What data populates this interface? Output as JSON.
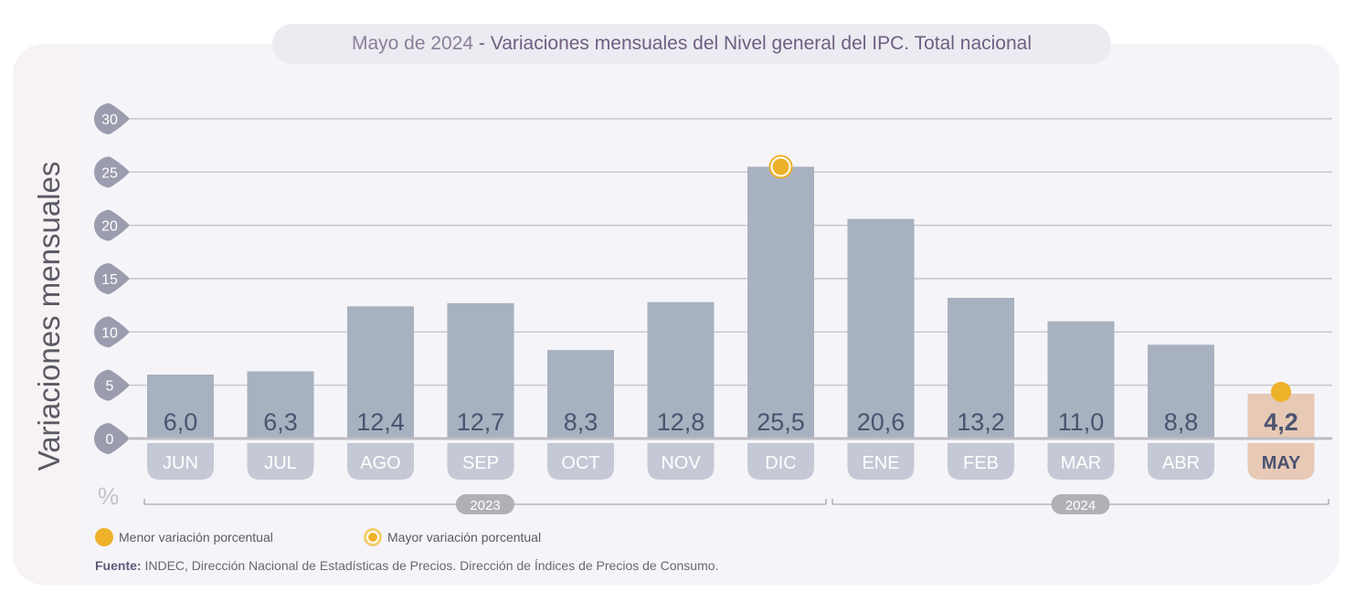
{
  "header": {
    "title_prefix": "Mayo de 2024",
    "title_separator": " - ",
    "title_main": "Variaciones mensuales del Nivel general del IPC. Total nacional"
  },
  "chart_data": {
    "type": "bar",
    "title": "Mayo de 2024 - Variaciones mensuales del Nivel general del IPC. Total nacional",
    "ylabel": "Variaciones mensuales",
    "yunit": "%",
    "ylim": [
      0,
      30
    ],
    "yticks": [
      0,
      5,
      10,
      15,
      20,
      25,
      30
    ],
    "grid": true,
    "categories": [
      "JUN",
      "JUL",
      "AGO",
      "SEP",
      "OCT",
      "NOV",
      "DIC",
      "ENE",
      "FEB",
      "MAR",
      "ABR",
      "MAY"
    ],
    "values": [
      6.0,
      6.3,
      12.4,
      12.7,
      8.3,
      12.8,
      25.5,
      20.6,
      13.2,
      11.0,
      8.8,
      4.2
    ],
    "value_labels": [
      "6,0",
      "6,3",
      "12,4",
      "12,7",
      "8,3",
      "12,8",
      "25,5",
      "20,6",
      "13,2",
      "11,0",
      "8,8",
      "4,2"
    ],
    "highlight_index": 11,
    "year_groups": [
      {
        "label": "2023",
        "from": 0,
        "to": 6
      },
      {
        "label": "2024",
        "from": 7,
        "to": 11
      }
    ],
    "markers": [
      {
        "index": 11,
        "type": "menor"
      },
      {
        "index": 6,
        "type": "mayor"
      }
    ],
    "legend": [
      {
        "type": "menor",
        "label": "Menor variación porcentual"
      },
      {
        "type": "mayor",
        "label": "Mayor variación porcentual"
      }
    ],
    "legend_position": "bottom-left"
  },
  "colors": {
    "bar": "#a8b1bf",
    "bar_highlight": "#e7c9b6",
    "month_tab": "#c4c9d5",
    "value_text": "#4c5370",
    "marker": "#eeb12a",
    "tick_bubble": "#9c9caf",
    "grid": "#bdbcc4"
  },
  "footer": {
    "source_label": "Fuente:",
    "source_text": " INDEC, Dirección Nacional de Estadísticas de Precios. Dirección de Índices de Precios de Consumo."
  }
}
